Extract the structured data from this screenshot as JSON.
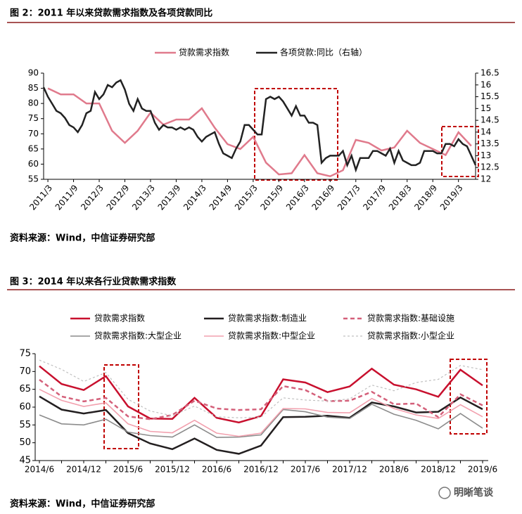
{
  "watermark": "明晰笔谈",
  "chart_data": [
    {
      "type": "line",
      "title": "图 2：2011 年以来贷款需求指数及各项贷款同比",
      "source": "资料来源：Wind，中信证券研究部",
      "xlim": [
        "2011/2",
        "2019/7"
      ],
      "xticks": [
        "2011/3",
        "2011/9",
        "2012/3",
        "2012/9",
        "2013/3",
        "2013/9",
        "2014/3",
        "2014/9",
        "2015/3",
        "2015/9",
        "2016/3",
        "2016/9",
        "2017/3",
        "2017/9",
        "2018/3",
        "2018/9",
        "2019/3"
      ],
      "ylim": [
        55,
        90
      ],
      "yticks": [
        55,
        60,
        65,
        70,
        75,
        80,
        85,
        90
      ],
      "y2lim": [
        12,
        16.5
      ],
      "y2ticks": [
        12,
        12.5,
        13,
        13.5,
        14,
        14.5,
        15,
        15.5,
        16,
        16.5
      ],
      "series": [
        {
          "name": "贷款需求指数",
          "color": "#e07a8c",
          "x": [
            "2011/3",
            "2011/6",
            "2011/9",
            "2011/12",
            "2012/3",
            "2012/6",
            "2012/9",
            "2012/12",
            "2013/3",
            "2013/6",
            "2013/9",
            "2013/12",
            "2014/3",
            "2014/6",
            "2014/9",
            "2014/12",
            "2015/3",
            "2015/6",
            "2015/9",
            "2015/12",
            "2016/3",
            "2016/6",
            "2016/9",
            "2016/12",
            "2017/3",
            "2017/6",
            "2017/9",
            "2017/12",
            "2018/3",
            "2018/6",
            "2018/9",
            "2018/12",
            "2019/3",
            "2019/6"
          ],
          "values": [
            85,
            83,
            83,
            80,
            80,
            71,
            67,
            71,
            77,
            73,
            74.7,
            74.7,
            78.4,
            72,
            66.6,
            65,
            69,
            60.5,
            56.6,
            57,
            63,
            57,
            56,
            58,
            68,
            67,
            64.5,
            65.5,
            71,
            67,
            65,
            63,
            70.5,
            66
          ]
        },
        {
          "name": "各项贷款:同比（右轴）",
          "color": "#222222",
          "axis": "y2",
          "x": [
            "2011/2",
            "2011/3",
            "2011/4",
            "2011/5",
            "2011/6",
            "2011/7",
            "2011/8",
            "2011/9",
            "2011/10",
            "2011/11",
            "2011/12",
            "2012/1",
            "2012/2",
            "2012/3",
            "2012/4",
            "2012/5",
            "2012/6",
            "2012/7",
            "2012/8",
            "2012/9",
            "2012/10",
            "2012/11",
            "2012/12",
            "2013/1",
            "2013/2",
            "2013/3",
            "2013/4",
            "2013/5",
            "2013/6",
            "2013/7",
            "2013/8",
            "2013/9",
            "2013/10",
            "2013/11",
            "2013/12",
            "2014/1",
            "2014/2",
            "2014/3",
            "2014/4",
            "2014/5",
            "2014/6",
            "2014/7",
            "2014/8",
            "2014/9",
            "2014/10",
            "2014/11",
            "2014/12",
            "2015/1",
            "2015/2",
            "2015/3",
            "2015/4",
            "2015/5",
            "2015/6",
            "2015/7",
            "2015/8",
            "2015/9",
            "2015/10",
            "2015/11",
            "2015/12",
            "2016/1",
            "2016/2",
            "2016/3",
            "2016/4",
            "2016/5",
            "2016/6",
            "2016/7",
            "2016/8",
            "2016/9",
            "2016/10",
            "2016/11",
            "2016/12",
            "2017/1",
            "2017/2",
            "2017/3",
            "2017/4",
            "2017/5",
            "2017/6",
            "2017/7",
            "2017/8",
            "2017/9",
            "2017/10",
            "2017/11",
            "2017/12",
            "2018/1",
            "2018/2",
            "2018/3",
            "2018/4",
            "2018/5",
            "2018/6",
            "2018/7",
            "2018/8",
            "2018/9",
            "2018/10",
            "2018/11",
            "2018/12",
            "2019/1",
            "2019/2",
            "2019/3",
            "2019/4",
            "2019/5",
            "2019/6",
            "2019/7"
          ],
          "values": [
            15.9,
            15.5,
            15.2,
            14.9,
            14.8,
            14.6,
            14.3,
            14.2,
            14.0,
            14.3,
            14.8,
            14.9,
            15.7,
            15.4,
            15.6,
            16.0,
            15.9,
            16.1,
            16.2,
            15.8,
            15.2,
            14.9,
            15.4,
            15.0,
            14.9,
            14.9,
            14.4,
            14.1,
            14.3,
            14.2,
            14.2,
            14.1,
            14.2,
            14.1,
            14.2,
            14.1,
            13.8,
            13.6,
            13.8,
            13.9,
            14.0,
            13.5,
            13.1,
            13.0,
            12.9,
            13.3,
            13.6,
            14.3,
            14.3,
            14.1,
            13.9,
            13.9,
            15.4,
            15.5,
            15.4,
            15.5,
            15.3,
            15.0,
            14.7,
            15.1,
            14.7,
            14.7,
            14.4,
            14.4,
            14.3,
            12.7,
            12.9,
            13.0,
            13.0,
            13.0,
            13.2,
            12.6,
            13.0,
            12.4,
            12.9,
            12.9,
            12.9,
            13.2,
            13.2,
            13.1,
            13.0,
            13.3,
            12.7,
            13.2,
            12.8,
            12.7,
            12.6,
            12.6,
            12.7,
            13.2,
            13.2,
            13.2,
            13.1,
            13.1,
            13.5,
            13.5,
            13.4,
            13.7,
            13.5,
            13.4,
            13.0,
            12.6
          ]
        }
      ]
    },
    {
      "type": "line",
      "title": "图 3：2014 年以来各行业贷款需求指数",
      "source": "资料来源：Wind，中信证券研究部",
      "categories": [
        "2014/6",
        null,
        "2014/12",
        null,
        "2015/6",
        null,
        "2015/12",
        null,
        "2016/6",
        null,
        "2016/12",
        null,
        "2017/6",
        null,
        "2017/12",
        null,
        "2018/6",
        null,
        "2018/12",
        null,
        "2019/6"
      ],
      "ylim": [
        45,
        75
      ],
      "yticks": [
        45,
        50,
        55,
        60,
        65,
        70,
        75
      ],
      "series": [
        {
          "name": "贷款需求指数",
          "color": "#c8102e",
          "dashed": false,
          "values": [
            71.5,
            66.5,
            64.8,
            68.7,
            60.2,
            56.8,
            56.7,
            62.6,
            57.0,
            55.7,
            57.5,
            67.8,
            66.9,
            64.2,
            65.8,
            70.8,
            66.3,
            65.0,
            62.9,
            70.5,
            66.1
          ]
        },
        {
          "name": "贷款需求指数:制造业",
          "color": "#231f20",
          "dashed": false,
          "values": [
            63.0,
            59.3,
            58.2,
            59.2,
            52.7,
            49.8,
            48.2,
            51.2,
            48.0,
            46.9,
            49.2,
            57.2,
            57.3,
            57.6,
            57.0,
            61.3,
            60.2,
            58.5,
            58.7,
            62.7,
            59.4
          ]
        },
        {
          "name": "贷款需求指数:基础设施",
          "color": "#d4607a",
          "dashed": true,
          "values": [
            67.7,
            63.0,
            61.6,
            62.6,
            57.4,
            56.6,
            57.8,
            61.8,
            59.6,
            59.2,
            59.4,
            65.9,
            64.8,
            61.7,
            61.8,
            64.3,
            60.8,
            61.0,
            57.2,
            63.6,
            60.5
          ]
        },
        {
          "name": "贷款需求指数:大型企业",
          "color": "#8c8c8c",
          "dashed": false,
          "values": [
            57.8,
            55.3,
            55.0,
            56.6,
            53.0,
            52.0,
            51.6,
            55.0,
            51.5,
            51.6,
            52.2,
            59.3,
            58.7,
            57.2,
            56.8,
            60.8,
            58.0,
            56.3,
            53.9,
            58.2,
            54.1
          ]
        },
        {
          "name": "贷款需求指数:中型企业",
          "color": "#f2a0ae",
          "dashed": false,
          "values": [
            65.0,
            61.9,
            60.2,
            61.2,
            55.3,
            53.2,
            52.8,
            56.3,
            52.7,
            51.8,
            52.7,
            59.6,
            59.5,
            58.5,
            58.4,
            62.4,
            59.6,
            57.8,
            56.8,
            60.7,
            57.3
          ]
        },
        {
          "name": "贷款需求指数:小型企业",
          "color": "#c0c0c0",
          "dashed": true,
          "values": [
            73.2,
            70.6,
            67.2,
            69.7,
            62.2,
            58.9,
            57.6,
            60.3,
            57.3,
            57.0,
            57.2,
            62.6,
            62.0,
            61.7,
            62.3,
            66.2,
            64.6,
            66.9,
            67.8,
            71.7,
            70.5
          ]
        }
      ]
    }
  ]
}
